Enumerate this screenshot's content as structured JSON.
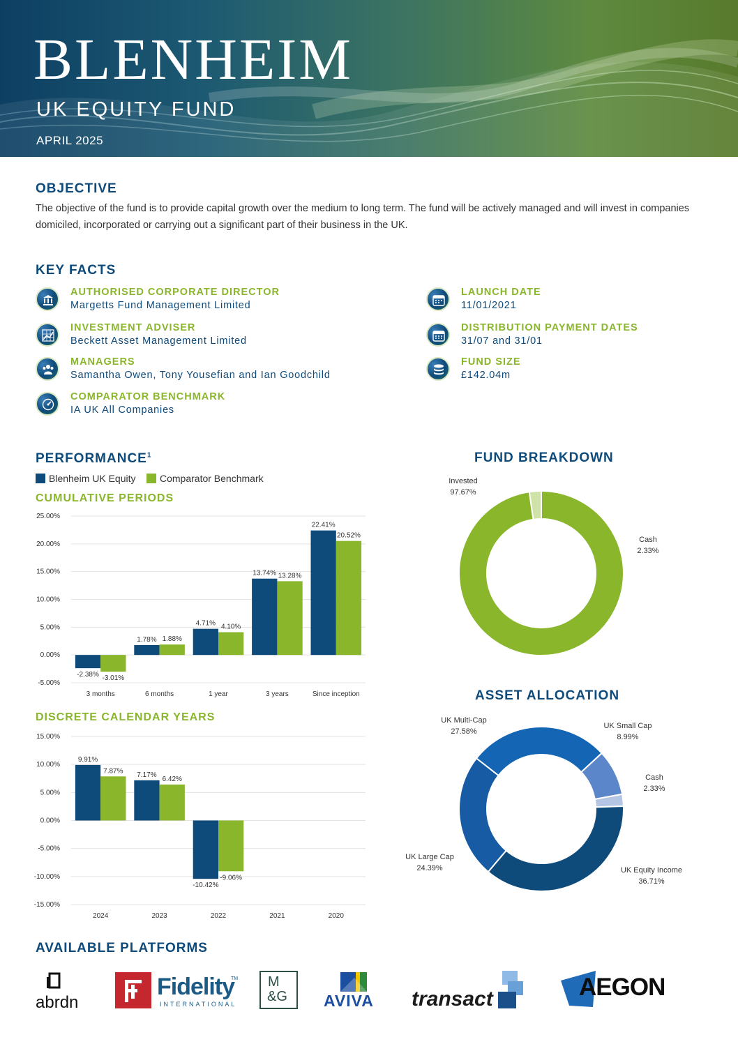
{
  "header": {
    "brand": "BLENHEIM",
    "subtitle": "UK EQUITY FUND",
    "date": "APRIL 2025"
  },
  "objective": {
    "heading": "OBJECTIVE",
    "text": "The objective of the fund is to provide capital growth over the medium to long term. The fund will be actively managed and will invest in companies domiciled, incorporated or carrying out a significant part of their business in the UK."
  },
  "key_facts": {
    "heading": "KEY FACTS",
    "left": [
      {
        "label": "AUTHORISED CORPORATE DIRECTOR",
        "value": "Margetts Fund Management Limited",
        "icon": "bank-icon"
      },
      {
        "label": "INVESTMENT ADVISER",
        "value": "Beckett Asset Management Limited",
        "icon": "chart-grid-icon"
      },
      {
        "label": "MANAGERS",
        "value": "Samantha Owen, Tony Yousefian and Ian Goodchild",
        "icon": "people-icon"
      },
      {
        "label": "COMPARATOR BENCHMARK",
        "value": "IA UK All Companies",
        "icon": "gauge-icon"
      }
    ],
    "right": [
      {
        "label": "LAUNCH DATE",
        "value": "11/01/2021",
        "icon": "calendar-icon"
      },
      {
        "label": "DISTRIBUTION PAYMENT DATES",
        "value": "31/07 and 31/01",
        "icon": "calendar-icon"
      },
      {
        "label": "FUND SIZE",
        "value": "£142.04m",
        "icon": "coins-icon"
      }
    ]
  },
  "performance": {
    "heading": "PERFORMANCE",
    "footnote": "1",
    "legend": [
      {
        "name": "Blenheim UK Equity",
        "color": "#0e4a7a"
      },
      {
        "name": "Comparator Benchmark",
        "color": "#8ab62c"
      }
    ],
    "cumulative_heading": "CUMULATIVE PERIODS",
    "discrete_heading": "DISCRETE CALENDAR YEARS"
  },
  "fund_breakdown_heading": "FUND BREAKDOWN",
  "asset_allocation_heading": "ASSET ALLOCATION",
  "platforms": {
    "heading": "AVAILABLE PLATFORMS",
    "logos": [
      "abrdn",
      "Fidelity",
      "INTERNATIONAL",
      "TM",
      "M",
      "&G",
      "AVIVA",
      "transact",
      "AEGON"
    ]
  },
  "colors": {
    "navy": "#0e4a7a",
    "green": "#8ab62c"
  },
  "chart_data": [
    {
      "id": "cumulative",
      "type": "bar",
      "categories": [
        "3 months",
        "6 months",
        "1 year",
        "3 years",
        "Since inception"
      ],
      "series": [
        {
          "name": "Blenheim UK Equity",
          "color": "#0e4a7a",
          "values": [
            -2.38,
            1.78,
            4.71,
            13.74,
            22.41
          ],
          "labels": [
            "-2.38%",
            "1.78%",
            "4.71%",
            "13.74%",
            "22.41%"
          ]
        },
        {
          "name": "Comparator Benchmark",
          "color": "#8ab62c",
          "values": [
            -3.01,
            1.88,
            4.1,
            13.28,
            20.52
          ],
          "labels": [
            "-3.01%",
            "1.88%",
            "4.10%",
            "13.28%",
            "20.52%"
          ]
        }
      ],
      "yticks": [
        "25.00%",
        "20.00%",
        "15.00%",
        "10.00%",
        "5.00%",
        "0.00%",
        "-5.00%"
      ],
      "ylim": [
        -5,
        25
      ],
      "grid": true
    },
    {
      "id": "discrete",
      "type": "bar",
      "categories": [
        "2024",
        "2023",
        "2022",
        "2021",
        "2020"
      ],
      "series": [
        {
          "name": "Blenheim UK Equity",
          "color": "#0e4a7a",
          "values": [
            9.91,
            7.17,
            -10.42,
            null,
            null
          ],
          "labels": [
            "9.91%",
            "7.17%",
            "-10.42%",
            "",
            ""
          ]
        },
        {
          "name": "Comparator Benchmark",
          "color": "#8ab62c",
          "values": [
            7.87,
            6.42,
            -9.06,
            null,
            null
          ],
          "labels": [
            "7.87%",
            "6.42%",
            "-9.06%",
            "",
            ""
          ]
        }
      ],
      "yticks": [
        "15.00%",
        "10.00%",
        "5.00%",
        "0.00%",
        "-5.00%",
        "-10.00%",
        "-15.00%"
      ],
      "ylim": [
        -15,
        15
      ],
      "grid": true
    },
    {
      "id": "fund_breakdown",
      "type": "pie",
      "variant": "donut",
      "slices": [
        {
          "name": "Invested",
          "value": 97.67,
          "label": "97.67%",
          "color": "#8ab62c"
        },
        {
          "name": "Cash",
          "value": 2.33,
          "label": "2.33%",
          "color": "#cfe3a8"
        }
      ]
    },
    {
      "id": "asset_allocation",
      "type": "pie",
      "variant": "donut",
      "slices": [
        {
          "name": "UK Multi-Cap",
          "value": 27.58,
          "label": "27.58%",
          "color": "#1565b5"
        },
        {
          "name": "UK Small Cap",
          "value": 8.99,
          "label": "8.99%",
          "color": "#5b86c9"
        },
        {
          "name": "Cash",
          "value": 2.33,
          "label": "2.33%",
          "color": "#b5c6e4"
        },
        {
          "name": "UK Equity Income",
          "value": 36.71,
          "label": "36.71%",
          "color": "#0e4a7a"
        },
        {
          "name": "UK Large Cap",
          "value": 24.39,
          "label": "24.39%",
          "color": "#175ba4"
        }
      ]
    }
  ]
}
